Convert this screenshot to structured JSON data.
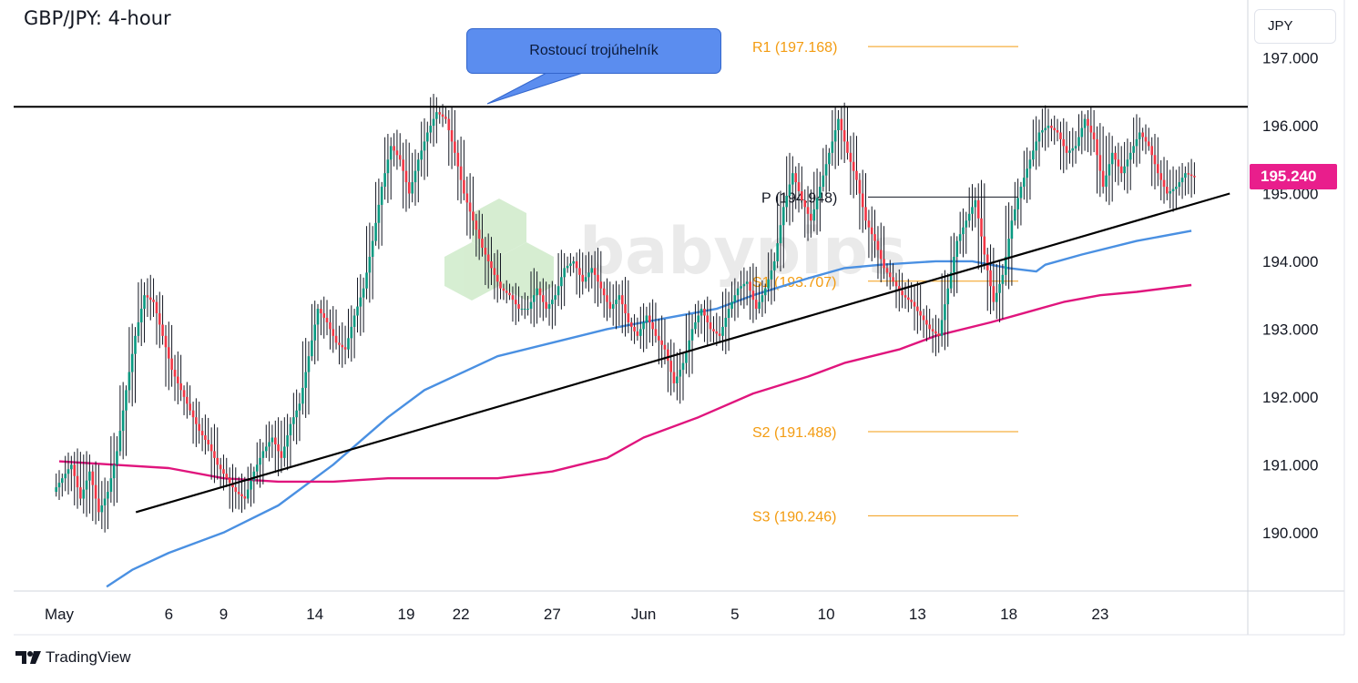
{
  "header": {
    "title": "GBP/JPY: 4-hour",
    "currency": "JPY"
  },
  "footer": {
    "brand": "TradingView"
  },
  "annotation": {
    "label": "Rostoucí trojúhelník"
  },
  "last_price": {
    "label": "195.240",
    "value": 195.24,
    "color": "#e91e8c"
  },
  "colors": {
    "up": "#089981",
    "down": "#f23645",
    "wick": "#131722",
    "ma_fast": "#4a90e2",
    "ma_slow": "#e0157d",
    "pivot_orange": "#f39c12",
    "trendline": "#000000",
    "callout_fill": "#5b8def"
  },
  "chart_data": {
    "type": "line",
    "title": "GBP/JPY: 4-hour",
    "ylim": [
      189.15,
      197.85
    ],
    "y_ticks": [
      "190.000",
      "191.000",
      "192.000",
      "193.000",
      "194.000",
      "195.000",
      "196.000",
      "197.000"
    ],
    "y_tick_values": [
      190,
      191,
      192,
      193,
      194,
      195,
      196,
      197
    ],
    "x_labels": [
      "May",
      "6",
      "9",
      "14",
      "19",
      "22",
      "27",
      "Jun",
      "5",
      "10",
      "13",
      "18",
      "23"
    ],
    "x_label_days": [
      0,
      6,
      9,
      14,
      19,
      22,
      27,
      32,
      37,
      42,
      47,
      52,
      57
    ],
    "grid": false,
    "pivot_levels": [
      {
        "name": "R1",
        "label": "R1 (197.168)",
        "value": 197.168
      },
      {
        "name": "P",
        "label": "P (194.948)",
        "value": 194.948
      },
      {
        "name": "S1",
        "label": "S1 (193.707)",
        "value": 193.707
      },
      {
        "name": "S2",
        "label": "S2 (191.488)",
        "value": 191.488
      },
      {
        "name": "S3",
        "label": "S3 (190.246)",
        "value": 190.246
      }
    ],
    "resistance_line": {
      "value": 196.28
    },
    "support_line": {
      "points": [
        [
          4.2,
          190.3
        ],
        [
          64.1,
          195.0
        ]
      ]
    },
    "closes": [
      [
        0,
        190.8
      ],
      [
        0.5,
        191.0
      ],
      [
        1,
        190.5
      ],
      [
        1.5,
        190.9
      ],
      [
        2,
        190.3
      ],
      [
        2.5,
        190.6
      ],
      [
        3,
        191.2
      ],
      [
        3.5,
        192.1
      ],
      [
        4,
        192.9
      ],
      [
        4.5,
        193.5
      ],
      [
        5,
        193.4
      ],
      [
        5.5,
        192.9
      ],
      [
        6,
        192.4
      ],
      [
        6.5,
        192.1
      ],
      [
        7,
        191.8
      ],
      [
        7.5,
        191.5
      ],
      [
        8,
        191.3
      ],
      [
        8.5,
        191.0
      ],
      [
        9,
        190.8
      ],
      [
        9.5,
        190.6
      ],
      [
        10,
        190.5
      ],
      [
        10.5,
        190.9
      ],
      [
        11,
        191.2
      ],
      [
        11.5,
        191.4
      ],
      [
        12,
        191.1
      ],
      [
        12.5,
        191.6
      ],
      [
        13,
        191.9
      ],
      [
        13.5,
        192.6
      ],
      [
        14,
        193.3
      ],
      [
        14.5,
        193.1
      ],
      [
        15,
        192.8
      ],
      [
        15.5,
        192.7
      ],
      [
        16,
        193.2
      ],
      [
        16.5,
        193.6
      ],
      [
        17,
        194.3
      ],
      [
        17.5,
        195.1
      ],
      [
        18,
        195.7
      ],
      [
        18.5,
        195.5
      ],
      [
        19,
        195.0
      ],
      [
        19.5,
        195.5
      ],
      [
        20,
        195.9
      ],
      [
        20.5,
        196.2
      ],
      [
        21,
        196.1
      ],
      [
        21.5,
        195.6
      ],
      [
        22,
        195.0
      ],
      [
        22.5,
        194.6
      ],
      [
        23,
        194.2
      ],
      [
        23.5,
        193.9
      ],
      [
        24,
        193.6
      ],
      [
        24.5,
        193.5
      ],
      [
        25,
        193.3
      ],
      [
        25.5,
        193.3
      ],
      [
        26,
        193.6
      ],
      [
        26.5,
        193.3
      ],
      [
        27,
        193.5
      ],
      [
        27.5,
        193.9
      ],
      [
        28,
        194.0
      ],
      [
        28.5,
        193.7
      ],
      [
        29,
        193.9
      ],
      [
        29.5,
        193.6
      ],
      [
        30,
        193.3
      ],
      [
        30.5,
        193.5
      ],
      [
        31,
        193.1
      ],
      [
        31.5,
        192.9
      ],
      [
        32,
        193.2
      ],
      [
        32.5,
        192.9
      ],
      [
        33,
        192.7
      ],
      [
        33.5,
        192.2
      ],
      [
        34,
        192.5
      ],
      [
        34.5,
        193.0
      ],
      [
        35,
        193.3
      ],
      [
        35.5,
        193.0
      ],
      [
        36,
        192.9
      ],
      [
        36.5,
        193.3
      ],
      [
        37,
        193.6
      ],
      [
        37.5,
        193.7
      ],
      [
        38,
        193.3
      ],
      [
        38.5,
        193.6
      ],
      [
        39,
        194.0
      ],
      [
        39.5,
        194.8
      ],
      [
        40,
        195.3
      ],
      [
        40.5,
        194.9
      ],
      [
        41,
        194.6
      ],
      [
        41.5,
        195.1
      ],
      [
        42,
        195.6
      ],
      [
        42.5,
        196.1
      ],
      [
        43,
        195.6
      ],
      [
        43.5,
        195.2
      ],
      [
        44,
        194.6
      ],
      [
        44.5,
        194.3
      ],
      [
        45,
        193.9
      ],
      [
        45.5,
        193.7
      ],
      [
        46,
        193.5
      ],
      [
        46.5,
        193.4
      ],
      [
        47,
        193.2
      ],
      [
        47.5,
        193.0
      ],
      [
        48,
        192.9
      ],
      [
        48.5,
        193.6
      ],
      [
        49,
        194.3
      ],
      [
        49.5,
        194.6
      ],
      [
        50,
        194.9
      ],
      [
        50.5,
        194.1
      ],
      [
        51,
        193.4
      ],
      [
        51.5,
        193.8
      ],
      [
        52,
        194.6
      ],
      [
        52.5,
        195.1
      ],
      [
        53,
        195.5
      ],
      [
        53.5,
        195.9
      ],
      [
        54,
        196.0
      ],
      [
        54.5,
        195.9
      ],
      [
        55,
        195.6
      ],
      [
        55.5,
        195.7
      ],
      [
        56,
        196.1
      ],
      [
        56.5,
        195.8
      ],
      [
        57,
        195.1
      ],
      [
        57.5,
        195.6
      ],
      [
        58,
        195.3
      ],
      [
        58.5,
        195.6
      ],
      [
        59,
        195.9
      ],
      [
        59.5,
        195.7
      ],
      [
        60,
        195.3
      ],
      [
        60.5,
        195.0
      ],
      [
        61,
        195.1
      ],
      [
        61.5,
        195.3
      ],
      [
        62,
        195.24
      ]
    ],
    "series": [
      {
        "type": "line",
        "values": [
          [
            2.6,
            189.2
          ],
          [
            4,
            189.45
          ],
          [
            6,
            189.7
          ],
          [
            9,
            190.0
          ],
          [
            12,
            190.4
          ],
          [
            15,
            191.0
          ],
          [
            18,
            191.7
          ],
          [
            20,
            192.1
          ],
          [
            24,
            192.6
          ],
          [
            27,
            192.8
          ],
          [
            30,
            193.0
          ],
          [
            33,
            193.15
          ],
          [
            36,
            193.3
          ],
          [
            38,
            193.5
          ],
          [
            41,
            193.75
          ],
          [
            43,
            193.9
          ],
          [
            45,
            193.95
          ],
          [
            48,
            194.0
          ],
          [
            50,
            194.0
          ],
          [
            52,
            193.9
          ],
          [
            53.5,
            193.85
          ],
          [
            54,
            193.95
          ],
          [
            56,
            194.1
          ],
          [
            59,
            194.3
          ],
          [
            62,
            194.45
          ]
        ]
      },
      {
        "type": "line",
        "values": [
          [
            0,
            191.05
          ],
          [
            3,
            191.0
          ],
          [
            6,
            190.95
          ],
          [
            9,
            190.8
          ],
          [
            12,
            190.75
          ],
          [
            15,
            190.75
          ],
          [
            18,
            190.8
          ],
          [
            21,
            190.8
          ],
          [
            24,
            190.8
          ],
          [
            27,
            190.9
          ],
          [
            30,
            191.1
          ],
          [
            32,
            191.4
          ],
          [
            35,
            191.7
          ],
          [
            38,
            192.05
          ],
          [
            41,
            192.3
          ],
          [
            43,
            192.5
          ],
          [
            46,
            192.7
          ],
          [
            48,
            192.9
          ],
          [
            51,
            193.1
          ],
          [
            53,
            193.25
          ],
          [
            55,
            193.4
          ],
          [
            57,
            193.5
          ],
          [
            59,
            193.55
          ],
          [
            62,
            193.65
          ]
        ]
      }
    ]
  }
}
